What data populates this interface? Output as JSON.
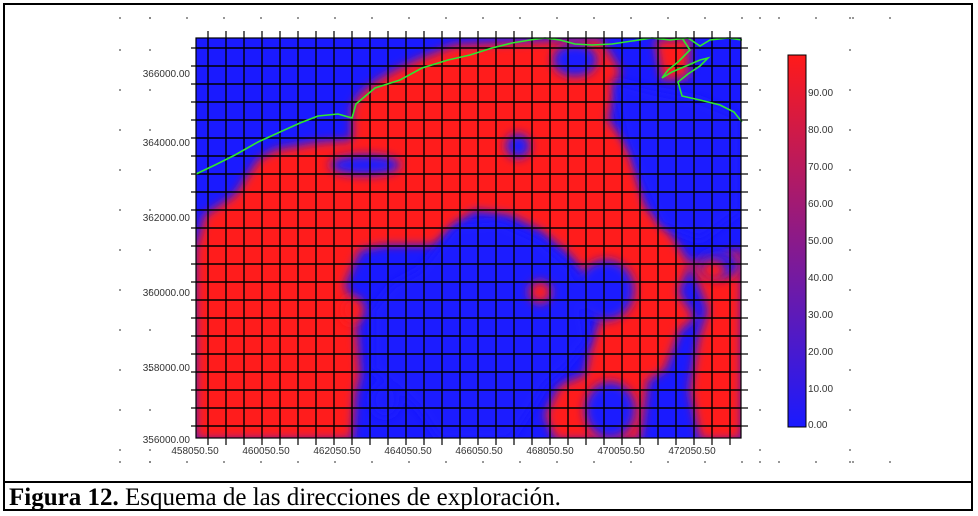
{
  "figure": {
    "caption_label": "Figura 12.",
    "caption_text": " Esquema de las direcciones de exploración."
  },
  "map": {
    "y_labels": [
      "366000.00",
      "364000.00",
      "362000.00",
      "360000.00",
      "358000.00",
      "356000.00"
    ],
    "x_labels": [
      "458050.50",
      "460050.50",
      "462050.50",
      "464050.50",
      "466050.50",
      "468050.50",
      "470050.50",
      "472050.50"
    ],
    "colorbar_labels": [
      "90.00",
      "80.00",
      "70.00",
      "60.00",
      "50.00",
      "40.00",
      "30.00",
      "20.00",
      "10.00",
      "0.00"
    ],
    "colors": {
      "low": "#1a1aff",
      "high": "#ff1a1a",
      "coastline": "#2ee82e",
      "grid": "#000000"
    }
  }
}
